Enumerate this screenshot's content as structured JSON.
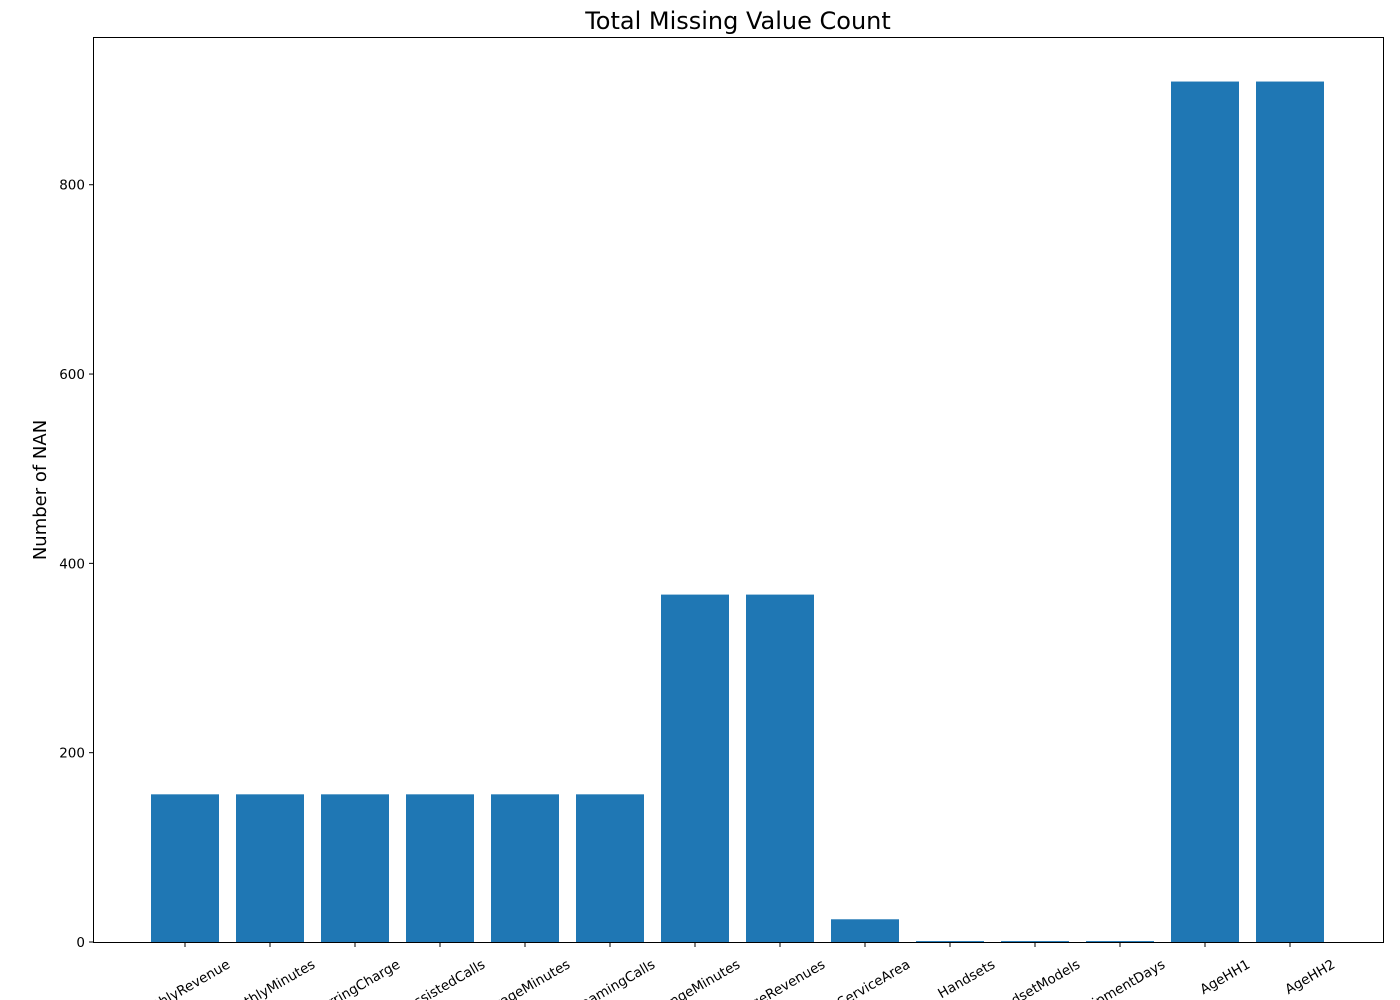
{
  "chart_data": {
    "type": "bar",
    "title": "Total Missing Value Count",
    "xlabel": "",
    "ylabel": "Number of NAN",
    "categories": [
      "MonthlyRevenue",
      "MonthlyMinutes",
      "TotalRecurringCharge",
      "DirectorAssistedCalls",
      "OverageMinutes",
      "RoamingCalls",
      "PercChangeMinutes",
      "PercChangeRevenues",
      "ServiceArea",
      "Handsets",
      "HandsetModels",
      "CurrentEquipmentDays",
      "AgeHH1",
      "AgeHH2"
    ],
    "values": [
      156,
      156,
      156,
      156,
      156,
      156,
      367,
      367,
      24,
      1,
      1,
      1,
      909,
      909
    ],
    "ylim": [
      0,
      955
    ],
    "yticks": [
      0,
      200,
      400,
      600,
      800
    ],
    "grid": false,
    "color": "#1f77b4"
  }
}
